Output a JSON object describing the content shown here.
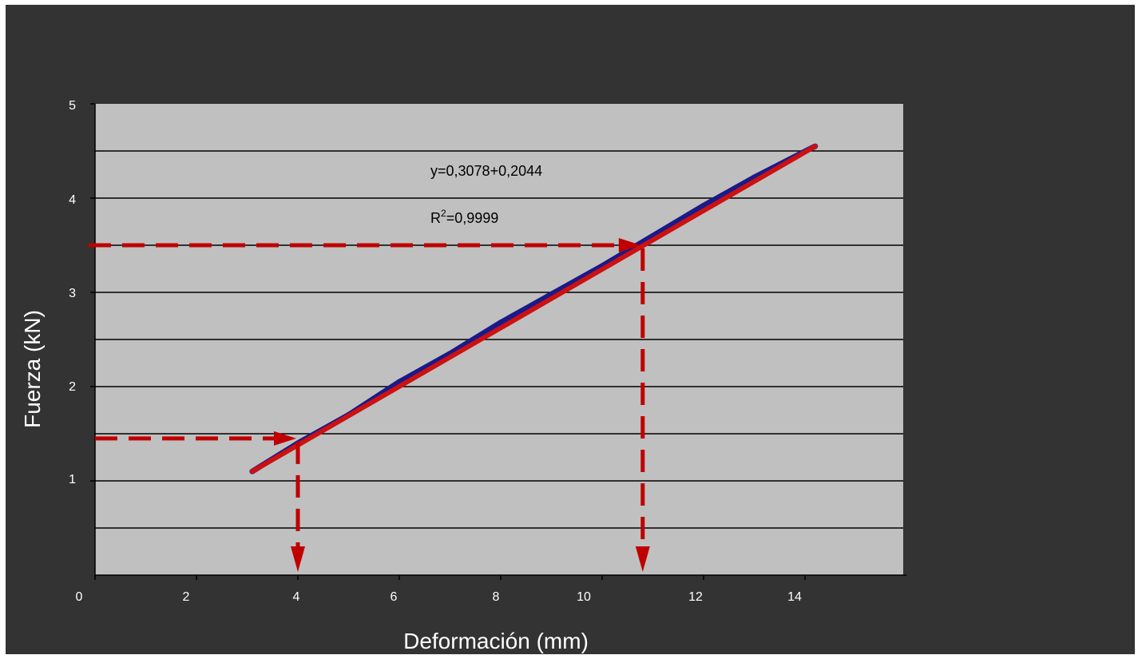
{
  "chart_data": {
    "type": "line",
    "xlabel": "Deformación (mm)",
    "ylabel": "Fuerza  (kN)",
    "x_ticks": [
      "0",
      "2",
      "4",
      "6",
      "8",
      "10",
      "12",
      "14"
    ],
    "y_ticks": [
      "1",
      "2",
      "3",
      "4",
      "5"
    ],
    "annotations": {
      "equation": "y=0,3078+0,2044",
      "r2_prefix": "R",
      "r2_sup": "2",
      "r2_value": "=0,9999"
    },
    "series": [
      {
        "x": [
          3.1,
          4.0,
          5.0,
          6.0,
          7.0,
          8.0,
          9.0,
          10.0,
          11.0,
          12.0,
          13.0,
          14.2
        ],
        "y": [
          1.1,
          1.4,
          1.7,
          2.05,
          2.35,
          2.68,
          2.98,
          3.28,
          3.6,
          3.92,
          4.22,
          4.55
        ],
        "color": "#1a1a8a"
      }
    ],
    "fit_line": {
      "x": [
        3.1,
        14.2
      ],
      "y": [
        1.1,
        4.55
      ],
      "color": "#cc1111"
    },
    "reference_lines": [
      {
        "x": 4.0,
        "y": 1.45
      },
      {
        "x": 10.8,
        "y": 3.5
      }
    ],
    "reference_color": "#c00000",
    "plot_background": "#c0c0c0",
    "grid": true
  }
}
